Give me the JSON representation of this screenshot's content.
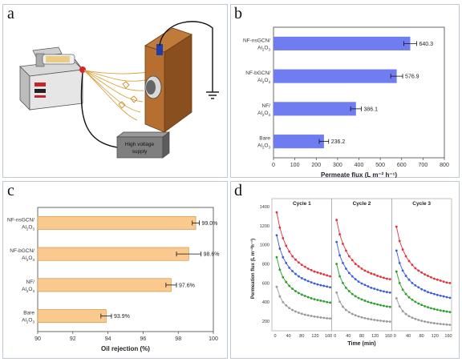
{
  "panel_labels": [
    "a",
    "b",
    "c",
    "d"
  ],
  "schematic": {
    "supply_label": [
      "High voltage",
      "supply"
    ]
  },
  "chart_data": [
    {
      "id": "b",
      "type": "bar",
      "orientation": "horizontal",
      "categories": [
        [
          "NF-nsGCN/",
          "Al2O3"
        ],
        [
          "NF-bGCN/",
          "Al2O3"
        ],
        [
          "NF/",
          "Al2O3"
        ],
        [
          "Bare",
          "Al2O3"
        ]
      ],
      "values": [
        640.3,
        576.9,
        386.1,
        236.2
      ],
      "errors": [
        30,
        28,
        25,
        22
      ],
      "value_labels": [
        "640.3",
        "576.9",
        "386.1",
        "236.2"
      ],
      "xlabel": "Permeate flux (L m⁻² h⁻¹)",
      "xlim": [
        0,
        800
      ],
      "xticks": [
        "0",
        "100",
        "200",
        "300",
        "400",
        "500",
        "600",
        "700",
        "800"
      ],
      "bar_color": "#6f7df0"
    },
    {
      "id": "c",
      "type": "bar",
      "orientation": "horizontal",
      "categories": [
        [
          "NF-nsGCN/",
          "Al2O3"
        ],
        [
          "NF-bGCN/",
          "Al2O3"
        ],
        [
          "NF/",
          "Al2O3"
        ],
        [
          "Bare",
          "Al2O3"
        ]
      ],
      "values": [
        99.0,
        98.6,
        97.6,
        93.9
      ],
      "errors": [
        0.2,
        0.7,
        0.3,
        0.3
      ],
      "value_labels": [
        "99.0%",
        "98.6%",
        "97.6%",
        "93.9%"
      ],
      "xlabel": "Oil rejection (%)",
      "xlim": [
        90,
        100
      ],
      "xticks": [
        "90",
        "92",
        "94",
        "96",
        "98",
        "100"
      ],
      "bar_color": "#f9c98e"
    },
    {
      "id": "d",
      "type": "line",
      "ylabel": "Permeation flux (L m⁻²h⁻¹)",
      "xlabel": "Time (min)",
      "ylim": [
        100,
        1400
      ],
      "yticks": [
        "200",
        "400",
        "600",
        "800",
        "1000",
        "1200",
        "1400"
      ],
      "cycles": [
        {
          "title": "Cycle 1",
          "xticks": [
            "0",
            "40",
            "80",
            "120",
            "160"
          ]
        },
        {
          "title": "Cycle 2",
          "xticks": [
            "0",
            "40",
            "80",
            "120",
            "160"
          ]
        },
        {
          "title": "Cycle 3",
          "xticks": [
            "0",
            "40",
            "80",
            "120",
            "160"
          ]
        }
      ],
      "x": [
        5,
        15,
        25,
        35,
        45,
        55,
        65,
        75,
        85,
        95,
        105,
        115,
        125,
        135,
        145,
        155,
        165,
        175
      ],
      "series": [
        {
          "color": "#e0343a",
          "cycles": [
            [
              1340,
              1180,
              1070,
              990,
              930,
              880,
              845,
              815,
              790,
              770,
              750,
              735,
              720,
              710,
              700,
              690,
              680,
              670
            ],
            [
              1260,
              1110,
              1010,
              940,
              880,
              840,
              800,
              775,
              750,
              730,
              715,
              700,
              690,
              675,
              665,
              655,
              645,
              640
            ],
            [
              1190,
              1040,
              950,
              880,
              830,
              790,
              755,
              730,
              710,
              690,
              675,
              660,
              645,
              635,
              625,
              615,
              605,
              600
            ]
          ]
        },
        {
          "color": "#3b5fd6",
          "cycles": [
            [
              1100,
              960,
              870,
              810,
              760,
              725,
              695,
              670,
              650,
              635,
              620,
              607,
              595,
              585,
              577,
              570,
              563,
              555
            ],
            [
              1030,
              890,
              810,
              750,
              705,
              670,
              640,
              615,
              595,
              580,
              565,
              550,
              540,
              530,
              520,
              512,
              505,
              500
            ],
            [
              940,
              810,
              730,
              675,
              635,
              600,
              575,
              555,
              535,
              520,
              505,
              495,
              485,
              475,
              467,
              460,
              452,
              445
            ]
          ]
        },
        {
          "color": "#2ca02c",
          "cycles": [
            [
              870,
              740,
              660,
              610,
              570,
              540,
              515,
              495,
              478,
              465,
              452,
              440,
              430,
              422,
              415,
              408,
              400,
              395
            ],
            [
              800,
              670,
              600,
              550,
              515,
              485,
              462,
              443,
              428,
              415,
              403,
              393,
              384,
              376,
              368,
              361,
              355,
              350
            ],
            [
              720,
              600,
              530,
              485,
              450,
              425,
              403,
              385,
              370,
              357,
              346,
              336,
              328,
              320,
              313,
              307,
              301,
              296
            ]
          ]
        },
        {
          "color": "#9a9a9a",
          "cycles": [
            [
              560,
              460,
              400,
              365,
              338,
              318,
              302,
              289,
              278,
              269,
              261,
              255,
              249,
              244,
              239,
              235,
              231,
              228
            ],
            [
              500,
              405,
              352,
              318,
              294,
              276,
              262,
              250,
              240,
              232,
              225,
              219,
              214,
              209,
              205,
              201,
              198,
              195
            ],
            [
              440,
              355,
              305,
              275,
              253,
              237,
              224,
              213,
              204,
              196,
              190,
              184,
              179,
              175,
              171,
              168,
              165,
              162
            ]
          ]
        }
      ]
    }
  ]
}
